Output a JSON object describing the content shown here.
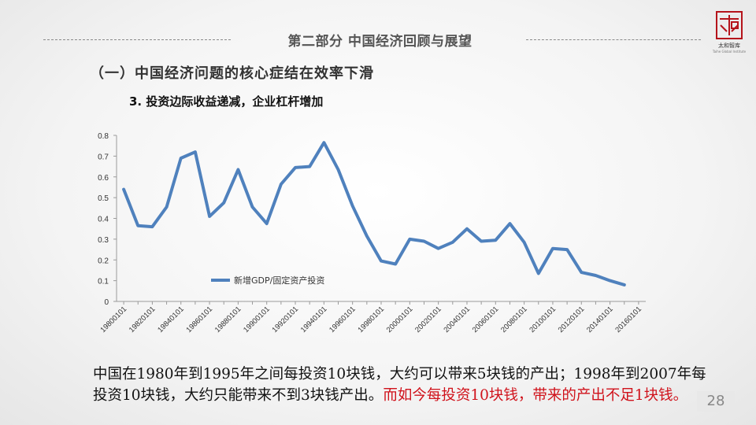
{
  "header": {
    "section_title": "第二部分  中国经济回顾与展望",
    "logo_text": "太和智库",
    "logo_subtext": "Taihe Global Institute"
  },
  "subtitle_1": "（一）中国经济问题的核心症结在效率下滑",
  "subtitle_2": "3. 投资边际收益递减，企业杠杆增加",
  "colors": {
    "series": "#4f81bd",
    "accent_red": "#d0121b",
    "seal": "#b5141b"
  },
  "chart_data": {
    "type": "line",
    "title": "",
    "xlabel": "",
    "ylabel": "",
    "ylim": [
      0,
      0.8
    ],
    "yticks": [
      "0",
      "0.1",
      "0.2",
      "0.3",
      "0.4",
      "0.5",
      "0.6",
      "0.7",
      "0.8"
    ],
    "xtick_labels": [
      "19800101",
      "19820101",
      "19840101",
      "19860101",
      "19880101",
      "19900101",
      "19920101",
      "19940101",
      "19960101",
      "19980101",
      "20000101",
      "20020101",
      "20040101",
      "20060101",
      "20080101",
      "20100101",
      "20120101",
      "20140101",
      "20160101"
    ],
    "x": [
      1980,
      1981,
      1982,
      1983,
      1984,
      1985,
      1986,
      1987,
      1988,
      1989,
      1990,
      1991,
      1992,
      1993,
      1994,
      1995,
      1996,
      1997,
      1998,
      1999,
      2000,
      2001,
      2002,
      2003,
      2004,
      2005,
      2006,
      2007,
      2008,
      2009,
      2010,
      2011,
      2012,
      2013,
      2014,
      2015
    ],
    "series": [
      {
        "name": "新增GDP/固定资产投资",
        "values": [
          0.54,
          0.365,
          0.36,
          0.455,
          0.69,
          0.72,
          0.41,
          0.475,
          0.635,
          0.455,
          0.375,
          0.565,
          0.645,
          0.65,
          0.765,
          0.635,
          0.46,
          0.315,
          0.195,
          0.18,
          0.3,
          0.29,
          0.255,
          0.285,
          0.35,
          0.29,
          0.295,
          0.375,
          0.285,
          0.135,
          0.255,
          0.25,
          0.14,
          0.125,
          0.1,
          0.08
        ]
      }
    ],
    "legend_position": "inside-bottom-left",
    "grid": false
  },
  "body": {
    "text_black": "中国在1980年到1995年之间每投资10块钱，大约可以带来5块钱的产出；1998年到2007年每投资10块钱，大约只能带来不到3块钱产出。",
    "text_red": "而如今每投资10块钱，带来的产出不足1块钱。"
  },
  "page_number": "28"
}
